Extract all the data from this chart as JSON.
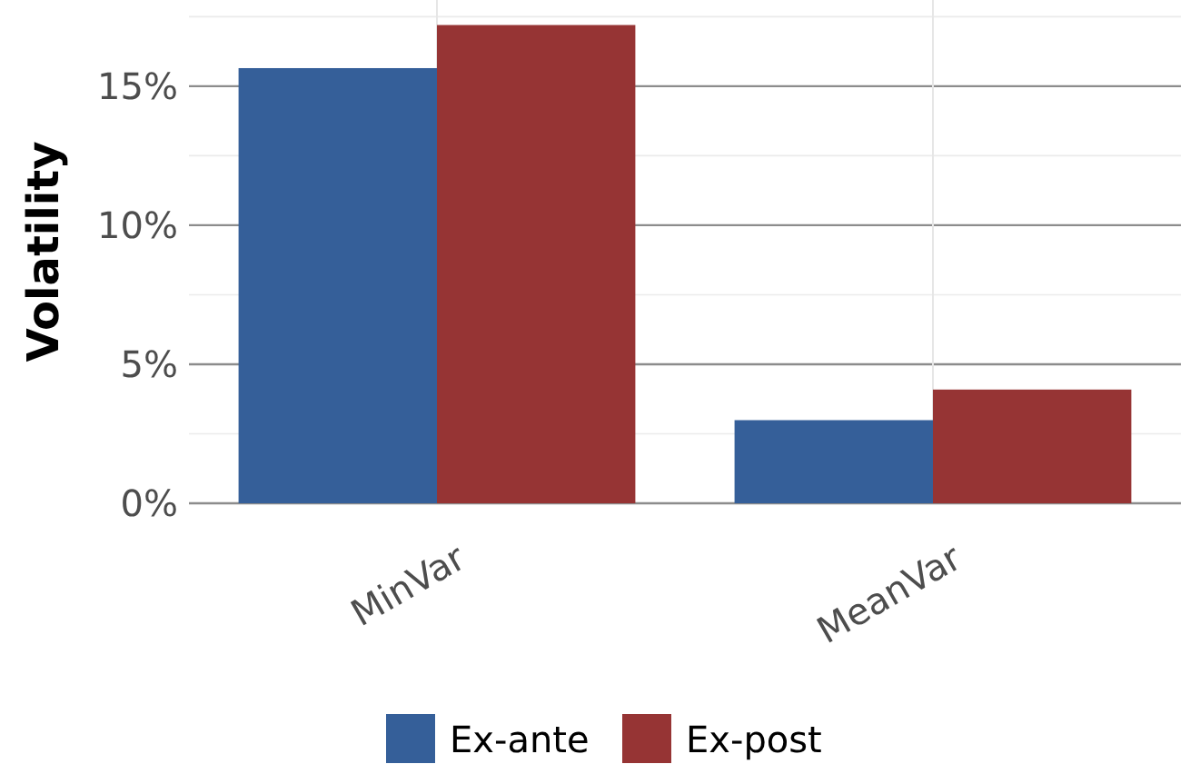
{
  "chart_data": {
    "type": "bar",
    "ylabel": "Volatility",
    "categories": [
      "MinVar",
      "MeanVar"
    ],
    "series": [
      {
        "name": "Ex-ante",
        "color": "#355f99",
        "values": [
          15.65,
          2.99
        ]
      },
      {
        "name": "Ex-post",
        "color": "#963434",
        "values": [
          17.2,
          4.09
        ]
      }
    ],
    "ylim": [
      0,
      18.1
    ],
    "yticks": [
      {
        "value": 0,
        "label": "0%"
      },
      {
        "value": 2.5,
        "label": null
      },
      {
        "value": 5,
        "label": "5%"
      },
      {
        "value": 7.5,
        "label": null
      },
      {
        "value": 10,
        "label": "10%"
      },
      {
        "value": 12.5,
        "label": null
      },
      {
        "value": 15,
        "label": "15%"
      },
      {
        "value": 17.5,
        "label": null
      }
    ],
    "grid": true,
    "legend": "bottom"
  }
}
